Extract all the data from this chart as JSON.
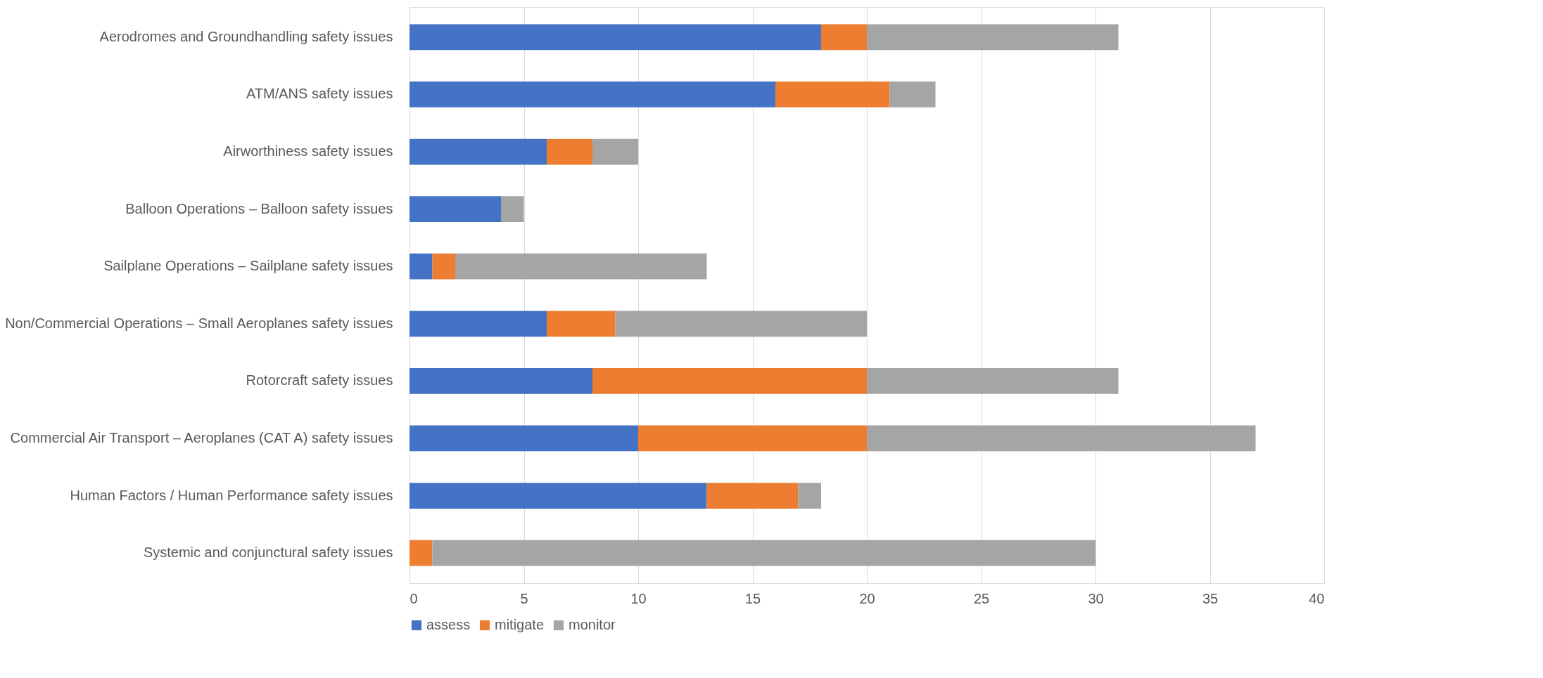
{
  "chart_data": {
    "type": "bar",
    "orientation": "horizontal",
    "stacked": true,
    "categories": [
      "Aerodromes and Groundhandling safety issues",
      "ATM/ANS safety issues",
      "Airworthiness safety issues",
      "Balloon Operations – Balloon safety issues",
      "Sailplane Operations – Sailplane safety issues",
      "Non/Commercial Operations – Small Aeroplanes safety issues",
      "Rotorcraft safety issues",
      "Commercial Air Transport – Aeroplanes (CAT A) safety issues",
      "Human Factors / Human Performance safety issues",
      "Systemic and conjunctural safety issues"
    ],
    "series": [
      {
        "name": "assess",
        "color": "#4472c4",
        "values": [
          18,
          16,
          6,
          4,
          1,
          6,
          8,
          10,
          13,
          0
        ]
      },
      {
        "name": "mitigate",
        "color": "#ed7d31",
        "values": [
          2,
          5,
          2,
          0,
          1,
          3,
          12,
          10,
          4,
          1
        ]
      },
      {
        "name": "monitor",
        "color": "#a5a5a5",
        "values": [
          11,
          2,
          2,
          1,
          11,
          11,
          11,
          17,
          1,
          29
        ]
      }
    ],
    "xlim": [
      0,
      40
    ],
    "xticks": [
      0,
      5,
      10,
      15,
      20,
      25,
      30,
      35,
      40
    ],
    "grid": "x",
    "legend": "bottom"
  }
}
